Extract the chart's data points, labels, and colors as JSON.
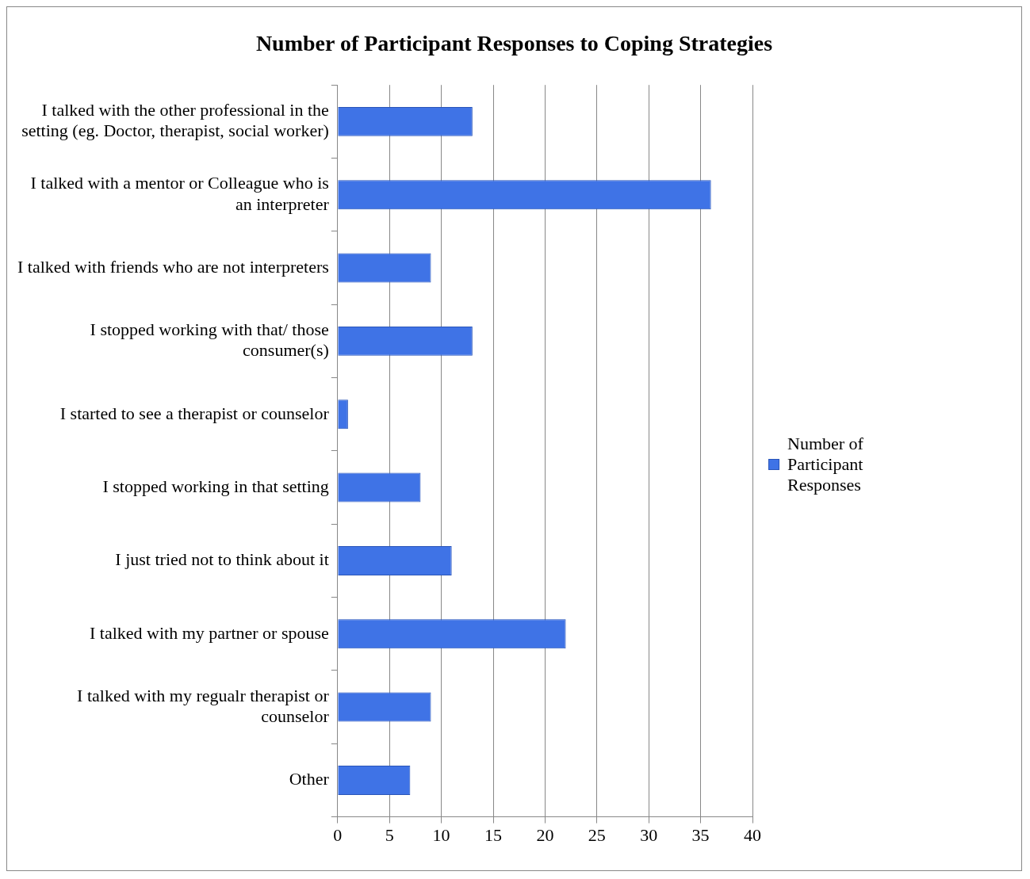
{
  "chart_data": {
    "type": "bar",
    "orientation": "horizontal",
    "title": "Number of Participant Responses to Coping Strategies",
    "categories": [
      "I talked with the other professional in the setting (eg. Doctor, therapist, social worker)",
      "I talked with a mentor or Colleague who is an interpreter",
      "I talked with friends who are not interpreters",
      "I stopped working with that/ those consumer(s)",
      "I started to see a therapist or counselor",
      "I stopped working in that setting",
      "I just tried not to think about it",
      "I talked with my partner or spouse",
      "I talked with my regualr therapist or counselor",
      "Other"
    ],
    "series": [
      {
        "name": "Number of Participant Responses",
        "color": "#3f73e6",
        "values": [
          13,
          36,
          9,
          13,
          1,
          8,
          11,
          22,
          9,
          7
        ]
      }
    ],
    "xlim": [
      0,
      40
    ],
    "xticks": [
      0,
      5,
      10,
      15,
      20,
      25,
      30,
      35,
      40
    ],
    "grid": "x",
    "legend": "right"
  }
}
